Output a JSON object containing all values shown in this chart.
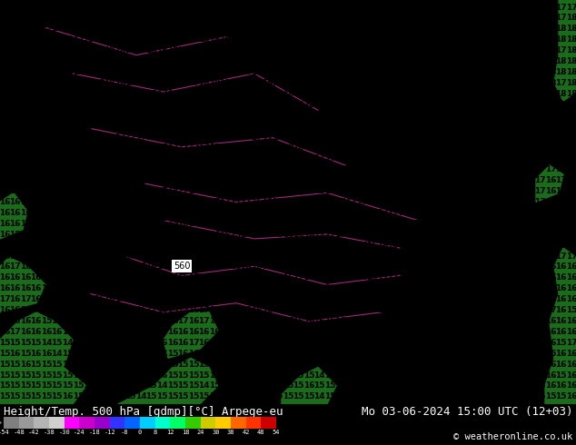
{
  "title_left": "Height/Temp. 500 hPa [gdmp][°C] Arpege-eu",
  "title_right": "Mo 03-06-2024 15:00 UTC (12+03)",
  "copyright": "© weatheronline.co.uk",
  "map_bg": "#00e5ff",
  "land_color": "#1a6b1a",
  "number_color": "#000000",
  "contour_color": "#cc3399",
  "label_560_color": "#000000",
  "label_560_bg": "#ffffff",
  "bottom_bar_bg": "#000000",
  "bottom_bar_text": "#ffffff",
  "title_fontsize": 9,
  "copyright_fontsize": 7.5,
  "fig_width": 6.34,
  "fig_height": 4.9,
  "dpi": 100,
  "colorbar_colors": [
    "#7f7f7f",
    "#9a9a9a",
    "#b4b4b4",
    "#d0d0d0",
    "#ff00ff",
    "#cc00cc",
    "#9900cc",
    "#3333ff",
    "#0066ff",
    "#00ccff",
    "#00ffcc",
    "#00ff66",
    "#33cc00",
    "#cccc00",
    "#ffcc00",
    "#ff6600",
    "#ff3300",
    "#cc0000"
  ],
  "colorbar_tick_labels": [
    "-54",
    "-48",
    "-42",
    "-38",
    "-30",
    "-24",
    "-18",
    "-12",
    "-8",
    "0",
    "8",
    "12",
    "18",
    "24",
    "30",
    "38",
    "42",
    "48",
    "54"
  ]
}
